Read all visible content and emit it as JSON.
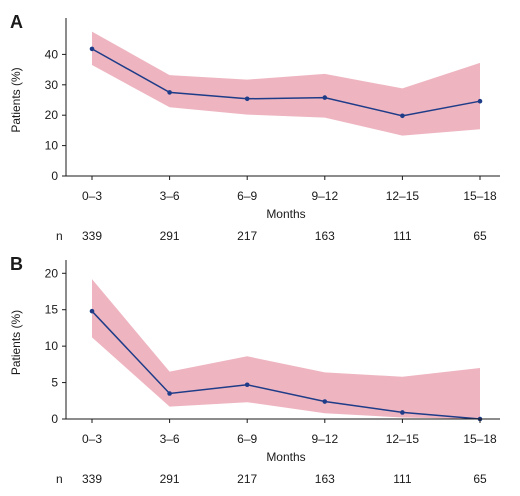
{
  "chart_data": [
    {
      "type": "line",
      "panel_label": "A",
      "categories": [
        "0–3",
        "3–6",
        "6–9",
        "9–12",
        "12–15",
        "15–18"
      ],
      "series": [
        {
          "values": [
            41.8,
            27.5,
            25.4,
            25.8,
            19.8,
            24.6
          ],
          "ci_lower": [
            36.5,
            22.6,
            20.2,
            19.2,
            13.3,
            15.4
          ],
          "ci_upper": [
            47.5,
            33.2,
            31.7,
            33.6,
            28.8,
            37.2
          ]
        }
      ],
      "xlabel": "Months",
      "ylabel": "Patients (%)",
      "ylim": [
        0,
        50
      ],
      "yticks": [
        0,
        10,
        20,
        30,
        40
      ],
      "n_label": "n",
      "n_values": [
        "339",
        "291",
        "217",
        "163",
        "111",
        "65"
      ],
      "grid": false,
      "line_color": "#1f3c88",
      "band_color": "#eeb5c1"
    },
    {
      "type": "line",
      "panel_label": "B",
      "categories": [
        "0–3",
        "3–6",
        "6–9",
        "9–12",
        "12–15",
        "15–18"
      ],
      "series": [
        {
          "values": [
            14.8,
            3.5,
            4.7,
            2.4,
            0.9,
            0.0
          ],
          "ci_lower": [
            11.2,
            1.7,
            2.3,
            0.8,
            0.2,
            0.0
          ],
          "ci_upper": [
            19.2,
            6.5,
            8.6,
            6.4,
            5.8,
            7.0
          ]
        }
      ],
      "xlabel": "Months",
      "ylabel": "Patients (%)",
      "ylim": [
        0,
        21
      ],
      "yticks": [
        0,
        5,
        10,
        15,
        20
      ],
      "n_label": "n",
      "n_values": [
        "339",
        "291",
        "217",
        "163",
        "111",
        "65"
      ],
      "grid": false,
      "line_color": "#1f3c88",
      "band_color": "#eeb5c1"
    }
  ]
}
